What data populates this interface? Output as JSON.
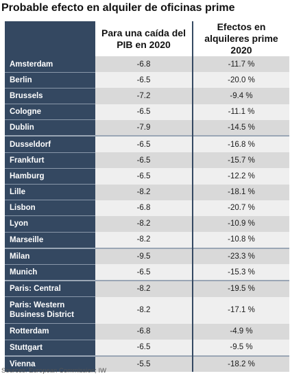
{
  "title": "Probable efecto en alquiler de oficinas prime",
  "table": {
    "headers": [
      "",
      "Para una caída del PIB en 2020",
      "Efectos en alquileres prime 2020"
    ],
    "rows": [
      {
        "city": "Amsterdam",
        "gdp": "-6.8",
        "rent": "-11.7 %"
      },
      {
        "city": "Berlin",
        "gdp": "-6.5",
        "rent": "-20.0 %"
      },
      {
        "city": "Brussels",
        "gdp": "-7.2",
        "rent": "-9.4 %"
      },
      {
        "city": "Cologne",
        "gdp": "-6.5",
        "rent": "-11.1 %"
      },
      {
        "city": "Dublin",
        "gdp": "-7.9",
        "rent": "-14.5 %"
      },
      {
        "city": "Dusseldorf",
        "gdp": "-6.5",
        "rent": "-16.8 %"
      },
      {
        "city": "Frankfurt",
        "gdp": "-6.5",
        "rent": "-15.7 %"
      },
      {
        "city": "Hamburg",
        "gdp": "-6.5",
        "rent": "-12.2 %"
      },
      {
        "city": "Lille",
        "gdp": "-8.2",
        "rent": "-18.1 %"
      },
      {
        "city": "Lisbon",
        "gdp": "-6.8",
        "rent": "-20.7 %"
      },
      {
        "city": "Lyon",
        "gdp": "-8.2",
        "rent": "-10.9 %"
      },
      {
        "city": "Marseille",
        "gdp": "-8.2",
        "rent": "-10.8 %"
      },
      {
        "city": "Milan",
        "gdp": "-9.5",
        "rent": "-23.3 %"
      },
      {
        "city": "Munich",
        "gdp": "-6.5",
        "rent": "-15.3 %"
      },
      {
        "city": "Paris: Central",
        "gdp": "-8.2",
        "rent": "-19.5 %"
      },
      {
        "city": "Paris: Western Business District",
        "gdp": "-8.2",
        "rent": "-17.1 %"
      },
      {
        "city": "Rotterdam",
        "gdp": "-6.8",
        "rent": "-4.9 %"
      },
      {
        "city": "Stuttgart",
        "gdp": "-6.5",
        "rent": "-9.5 %"
      },
      {
        "city": "Vienna",
        "gdp": "-5.5",
        "rent": "-18.2 %"
      }
    ]
  },
  "source": "Sources: European Commission; IW"
}
